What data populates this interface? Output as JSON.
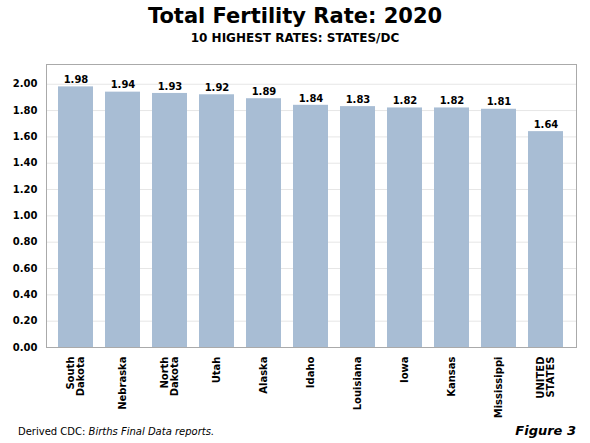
{
  "chart_data": {
    "type": "bar",
    "title": "Total Fertility Rate: 2020",
    "subtitle": "10 HIGHEST RATES: STATES/DC",
    "categories": [
      "South\nDakota",
      "Nebraska",
      "North\nDakota",
      "Utah",
      "Alaska",
      "Idaho",
      "Louisiana",
      "Iowa",
      "Kansas",
      "Mississippi",
      "UNITED\nSTATES"
    ],
    "values": [
      1.98,
      1.94,
      1.93,
      1.92,
      1.89,
      1.84,
      1.83,
      1.82,
      1.82,
      1.81,
      1.64
    ],
    "color": "#a8bdd4",
    "ylim": [
      0,
      2.15
    ],
    "yticks": [
      {
        "value": 0.0,
        "label": "0.00"
      },
      {
        "value": 0.2,
        "label": "0.20"
      },
      {
        "value": 0.4,
        "label": "0.40"
      },
      {
        "value": 0.6,
        "label": "0.60"
      },
      {
        "value": 0.8,
        "label": "0.80"
      },
      {
        "value": 1.0,
        "label": "1.00"
      },
      {
        "value": 1.2,
        "label": "1.20"
      },
      {
        "value": 1.4,
        "label": "1.40"
      },
      {
        "value": 1.6,
        "label": "1.60"
      },
      {
        "value": 1.8,
        "label": "1.80"
      },
      {
        "value": 2.0,
        "label": "2.00"
      }
    ],
    "grid": true,
    "data_labels": true,
    "annotations": [
      "Derived  CDC: ",
      "Births Final Data reports.",
      "Figure 3"
    ]
  }
}
